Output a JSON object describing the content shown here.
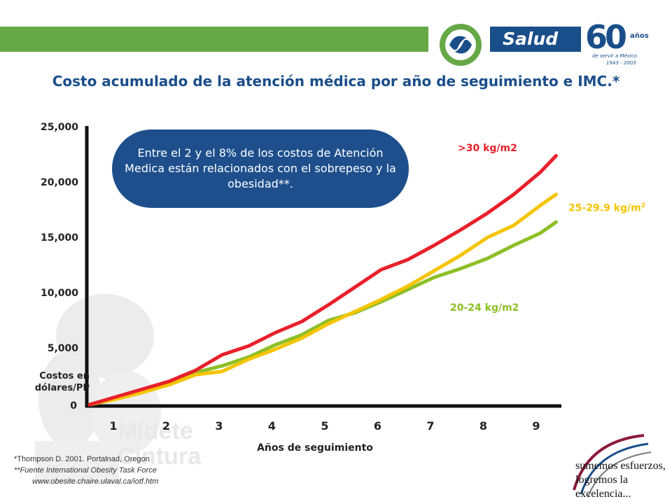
{
  "header": {
    "brand": "Salud",
    "anniversary_number": "60",
    "anniversary_word": "años",
    "tagline": "de servir a México",
    "years": "1943 - 2003"
  },
  "title": "Costo  acumulado de la atención médica por año de seguimiento e IMC.*",
  "callout": "Entre el 2 y el 8% de los costos de Atención Medica están  relacionados con el sobrepeso y la  obesidad**.",
  "footnotes": {
    "line1": "*Thompson D. 2001. Portalnad, Oregon",
    "line2": "**Fuente  International  Obesity  Task Force",
    "line3": "www.obesite.chaire.ulaval.ca/iotf.htm"
  },
  "watermark": {
    "line1": "Mídete",
    "line2": "Cintura"
  },
  "slogan": {
    "line1": "sumemos esfuerzos,",
    "line2": "logremos la excelencia..."
  },
  "colors": {
    "brand_green": "#66a847",
    "brand_blue": "#1a4e8a",
    "series_red": "#e8202a",
    "series_yellow": "#f5c400",
    "series_green": "#8cbf26"
  },
  "chart_data": {
    "type": "line",
    "xlabel": "Años de seguimiento",
    "ylabel": "Costos en dólares/PP",
    "x": [
      0,
      0.5,
      1,
      1.5,
      2,
      2.5,
      3,
      3.5,
      4,
      4.5,
      5,
      5.5,
      6,
      6.5,
      7,
      7.5,
      8,
      8.5,
      8.8
    ],
    "xticks": [
      1,
      2,
      3,
      4,
      5,
      6,
      7,
      8,
      9
    ],
    "yticks": [
      {
        "value": 0,
        "label": "0"
      },
      {
        "value": 5000,
        "label": "5,000"
      },
      {
        "value": 10000,
        "label": "10,000"
      },
      {
        "value": 15000,
        "label": "15,000"
      },
      {
        "value": 20000,
        "label": "20,000"
      },
      {
        "value": 25000,
        "label": "25,000"
      }
    ],
    "xlim": [
      0,
      8.9
    ],
    "ylim": [
      0,
      25000
    ],
    "series": [
      {
        "name": ">30 kg/m2",
        "color": "#e8202a",
        "values": [
          0,
          700,
          1400,
          2100,
          3100,
          4500,
          5300,
          6500,
          7500,
          9000,
          10600,
          12200,
          13100,
          14400,
          15800,
          17300,
          19000,
          21000,
          22500
        ]
      },
      {
        "name": "25-29.9 kg/m",
        "superscript": "2",
        "color": "#f5c400",
        "values": [
          0,
          500,
          1100,
          1800,
          2700,
          3000,
          4100,
          5000,
          6000,
          7300,
          8400,
          9500,
          10700,
          12100,
          13500,
          15100,
          16200,
          18000,
          19000
        ]
      },
      {
        "name": "20-24 kg/m2",
        "color": "#8cbf26",
        "values": [
          0,
          500,
          1300,
          1900,
          2900,
          3500,
          4300,
          5400,
          6300,
          7600,
          8300,
          9300,
          10400,
          11500,
          12300,
          13200,
          14400,
          15500,
          16500
        ]
      }
    ]
  }
}
